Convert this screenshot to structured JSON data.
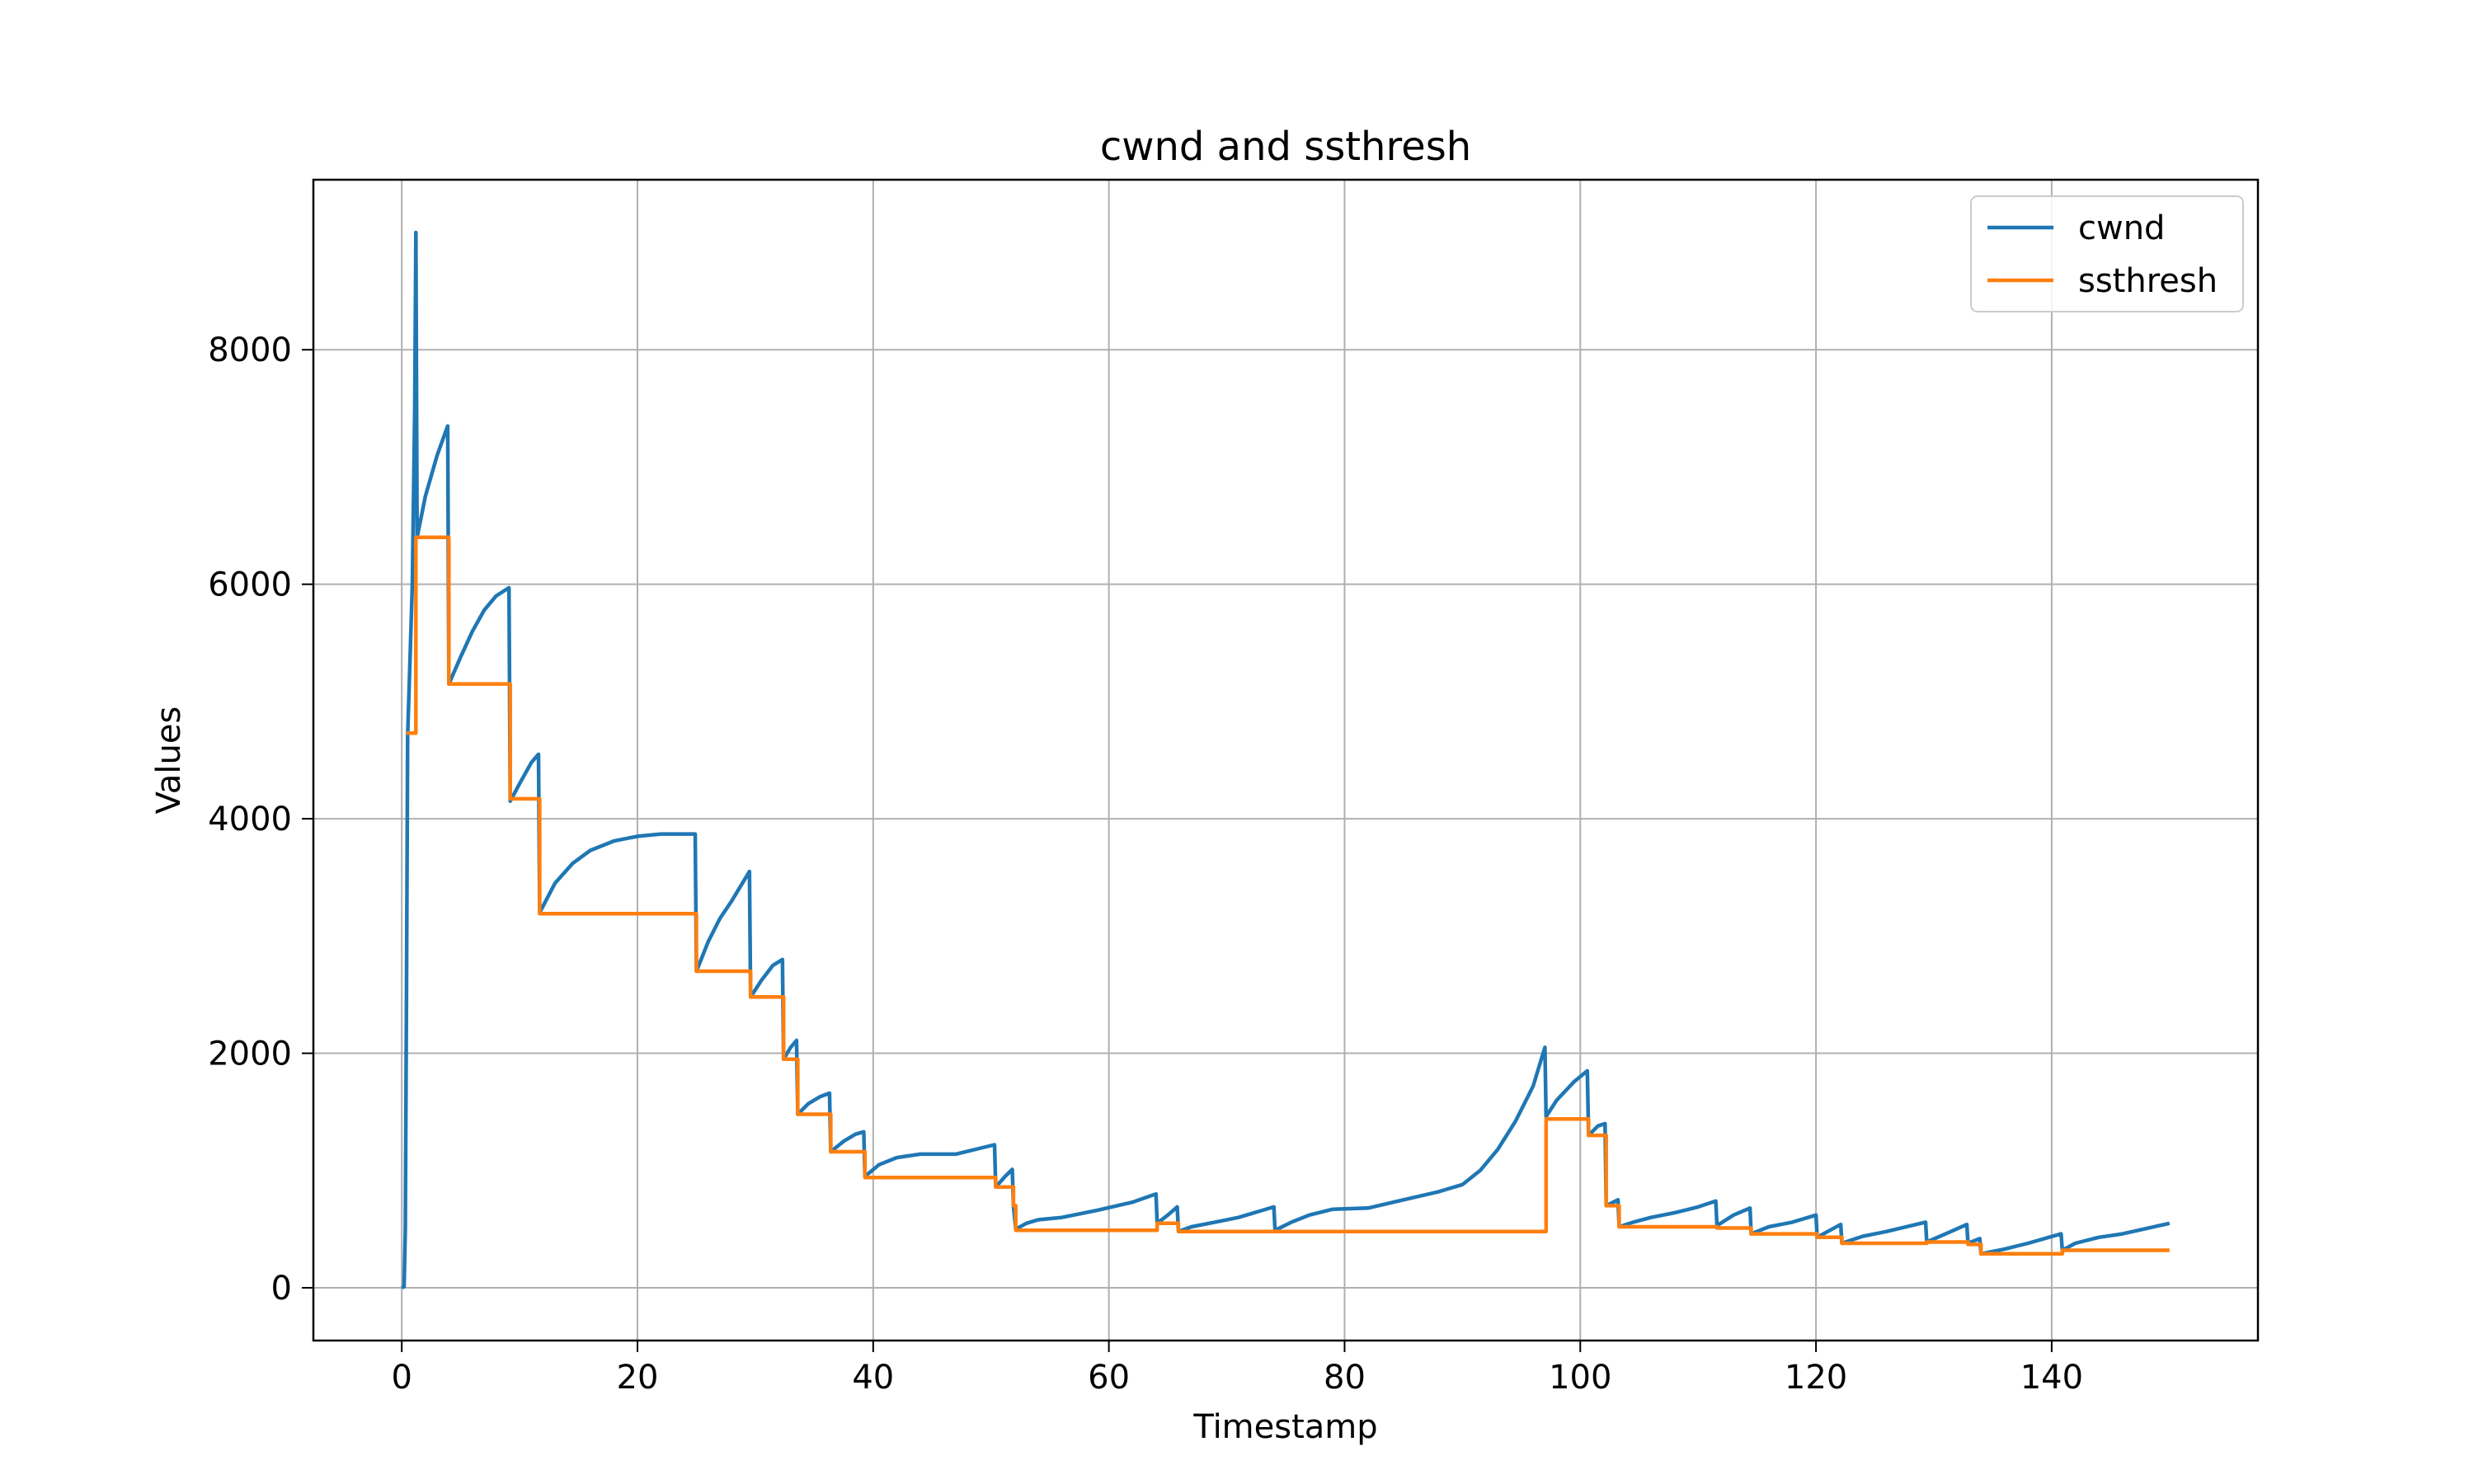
{
  "chart_data": {
    "type": "line",
    "title": "cwnd and ssthresh",
    "xlabel": "Timestamp",
    "ylabel": "Values",
    "xlim": [
      -7.5,
      157.5
    ],
    "ylim": [
      -450,
      9450
    ],
    "xticks": [
      0,
      20,
      40,
      60,
      80,
      100,
      120,
      140
    ],
    "yticks": [
      0,
      2000,
      4000,
      6000,
      8000
    ],
    "xtick_labels": [
      "0",
      "20",
      "40",
      "60",
      "80",
      "100",
      "120",
      "140"
    ],
    "ytick_labels": [
      "0",
      "2000",
      "4000",
      "6000",
      "8000"
    ],
    "grid": true,
    "legend_position": "top-right",
    "series": [
      {
        "name": "cwnd",
        "color": "#1f77b4",
        "points": [
          [
            0.0,
            0
          ],
          [
            0.2,
            10
          ],
          [
            0.3,
            500
          ],
          [
            0.4,
            2500
          ],
          [
            0.5,
            4700
          ],
          [
            0.9,
            6000
          ],
          [
            1.1,
            7500
          ],
          [
            1.2,
            9000
          ],
          [
            1.3,
            6400
          ],
          [
            2.0,
            6750
          ],
          [
            3.0,
            7100
          ],
          [
            3.9,
            7350
          ],
          [
            4.0,
            5150
          ],
          [
            5.0,
            5380
          ],
          [
            6.0,
            5600
          ],
          [
            7.0,
            5780
          ],
          [
            8.0,
            5900
          ],
          [
            9.1,
            5970
          ],
          [
            9.2,
            4150
          ],
          [
            10.0,
            4300
          ],
          [
            11.0,
            4480
          ],
          [
            11.6,
            4550
          ],
          [
            11.7,
            3200
          ],
          [
            13.0,
            3450
          ],
          [
            14.5,
            3620
          ],
          [
            16.0,
            3730
          ],
          [
            18.0,
            3810
          ],
          [
            20.0,
            3850
          ],
          [
            22.0,
            3870
          ],
          [
            24.9,
            3870
          ],
          [
            25.0,
            2700
          ],
          [
            26.0,
            2950
          ],
          [
            27.0,
            3150
          ],
          [
            28.0,
            3300
          ],
          [
            29.5,
            3550
          ],
          [
            29.6,
            2480
          ],
          [
            30.5,
            2620
          ],
          [
            31.5,
            2750
          ],
          [
            32.3,
            2800
          ],
          [
            32.4,
            1950
          ],
          [
            33.0,
            2050
          ],
          [
            33.5,
            2110
          ],
          [
            33.6,
            1480
          ],
          [
            34.5,
            1570
          ],
          [
            35.5,
            1630
          ],
          [
            36.3,
            1660
          ],
          [
            36.4,
            1160
          ],
          [
            37.5,
            1250
          ],
          [
            38.5,
            1310
          ],
          [
            39.2,
            1330
          ],
          [
            39.3,
            950
          ],
          [
            40.5,
            1050
          ],
          [
            42.0,
            1110
          ],
          [
            44.0,
            1140
          ],
          [
            47.0,
            1140
          ],
          [
            50.3,
            1220
          ],
          [
            50.4,
            860
          ],
          [
            51.2,
            950
          ],
          [
            51.8,
            1010
          ],
          [
            51.9,
            700
          ],
          [
            52.1,
            500
          ],
          [
            53.0,
            550
          ],
          [
            54.0,
            580
          ],
          [
            56.0,
            600
          ],
          [
            59.0,
            660
          ],
          [
            62.0,
            730
          ],
          [
            64.0,
            800
          ],
          [
            64.1,
            550
          ],
          [
            65.0,
            620
          ],
          [
            65.8,
            690
          ],
          [
            65.9,
            480
          ],
          [
            67.0,
            520
          ],
          [
            69.0,
            560
          ],
          [
            71.0,
            600
          ],
          [
            74.0,
            690
          ],
          [
            74.1,
            490
          ],
          [
            75.5,
            560
          ],
          [
            77.0,
            620
          ],
          [
            79.0,
            670
          ],
          [
            82.0,
            680
          ],
          [
            85.0,
            750
          ],
          [
            88.0,
            820
          ],
          [
            90.0,
            880
          ],
          [
            91.5,
            1000
          ],
          [
            93.0,
            1180
          ],
          [
            94.5,
            1420
          ],
          [
            96.0,
            1720
          ],
          [
            97.0,
            2050
          ],
          [
            97.1,
            1460
          ],
          [
            98.0,
            1600
          ],
          [
            99.5,
            1760
          ],
          [
            100.6,
            1850
          ],
          [
            100.7,
            1300
          ],
          [
            101.5,
            1380
          ],
          [
            102.1,
            1400
          ],
          [
            102.2,
            700
          ],
          [
            103.0,
            740
          ],
          [
            103.2,
            750
          ],
          [
            103.3,
            520
          ],
          [
            104.5,
            560
          ],
          [
            106.0,
            600
          ],
          [
            108.0,
            640
          ],
          [
            110.0,
            690
          ],
          [
            111.5,
            740
          ],
          [
            111.6,
            530
          ],
          [
            113.0,
            620
          ],
          [
            114.4,
            680
          ],
          [
            114.5,
            460
          ],
          [
            116.0,
            520
          ],
          [
            118.0,
            560
          ],
          [
            120.0,
            620
          ],
          [
            120.1,
            430
          ],
          [
            121.0,
            480
          ],
          [
            122.1,
            540
          ],
          [
            122.2,
            380
          ],
          [
            124.0,
            440
          ],
          [
            126.0,
            480
          ],
          [
            129.3,
            560
          ],
          [
            129.4,
            390
          ],
          [
            131.0,
            460
          ],
          [
            132.8,
            540
          ],
          [
            132.9,
            380
          ],
          [
            133.9,
            420
          ],
          [
            134.0,
            290
          ],
          [
            136.0,
            330
          ],
          [
            138.0,
            380
          ],
          [
            140.8,
            460
          ],
          [
            140.9,
            320
          ],
          [
            142.0,
            380
          ],
          [
            144.0,
            430
          ],
          [
            146.0,
            460
          ],
          [
            150.0,
            550
          ]
        ]
      },
      {
        "name": "ssthresh",
        "color": "#ff7f0e",
        "points": [
          [
            0.4,
            4730
          ],
          [
            1.2,
            4730
          ],
          [
            1.2,
            6400
          ],
          [
            4.0,
            6400
          ],
          [
            4.0,
            5150
          ],
          [
            9.2,
            5150
          ],
          [
            9.2,
            4170
          ],
          [
            11.7,
            4170
          ],
          [
            11.7,
            3190
          ],
          [
            25.0,
            3190
          ],
          [
            25.0,
            2700
          ],
          [
            29.6,
            2700
          ],
          [
            29.6,
            2480
          ],
          [
            32.4,
            2480
          ],
          [
            32.4,
            1950
          ],
          [
            33.6,
            1950
          ],
          [
            33.6,
            1480
          ],
          [
            36.4,
            1480
          ],
          [
            36.4,
            1160
          ],
          [
            39.3,
            1160
          ],
          [
            39.3,
            940
          ],
          [
            50.4,
            940
          ],
          [
            50.4,
            860
          ],
          [
            51.9,
            860
          ],
          [
            51.9,
            700
          ],
          [
            52.1,
            700
          ],
          [
            52.1,
            490
          ],
          [
            64.1,
            490
          ],
          [
            64.1,
            550
          ],
          [
            65.9,
            550
          ],
          [
            65.9,
            480
          ],
          [
            97.1,
            480
          ],
          [
            97.1,
            1440
          ],
          [
            100.7,
            1440
          ],
          [
            100.7,
            1300
          ],
          [
            102.2,
            1300
          ],
          [
            102.2,
            700
          ],
          [
            103.3,
            700
          ],
          [
            103.3,
            520
          ],
          [
            111.6,
            520
          ],
          [
            111.6,
            510
          ],
          [
            114.5,
            510
          ],
          [
            114.5,
            460
          ],
          [
            120.1,
            460
          ],
          [
            120.1,
            430
          ],
          [
            122.2,
            430
          ],
          [
            122.2,
            380
          ],
          [
            129.4,
            380
          ],
          [
            129.4,
            390
          ],
          [
            132.9,
            390
          ],
          [
            132.9,
            370
          ],
          [
            134.0,
            370
          ],
          [
            134.0,
            290
          ],
          [
            140.9,
            290
          ],
          [
            140.9,
            320
          ],
          [
            150.0,
            320
          ]
        ]
      }
    ]
  }
}
